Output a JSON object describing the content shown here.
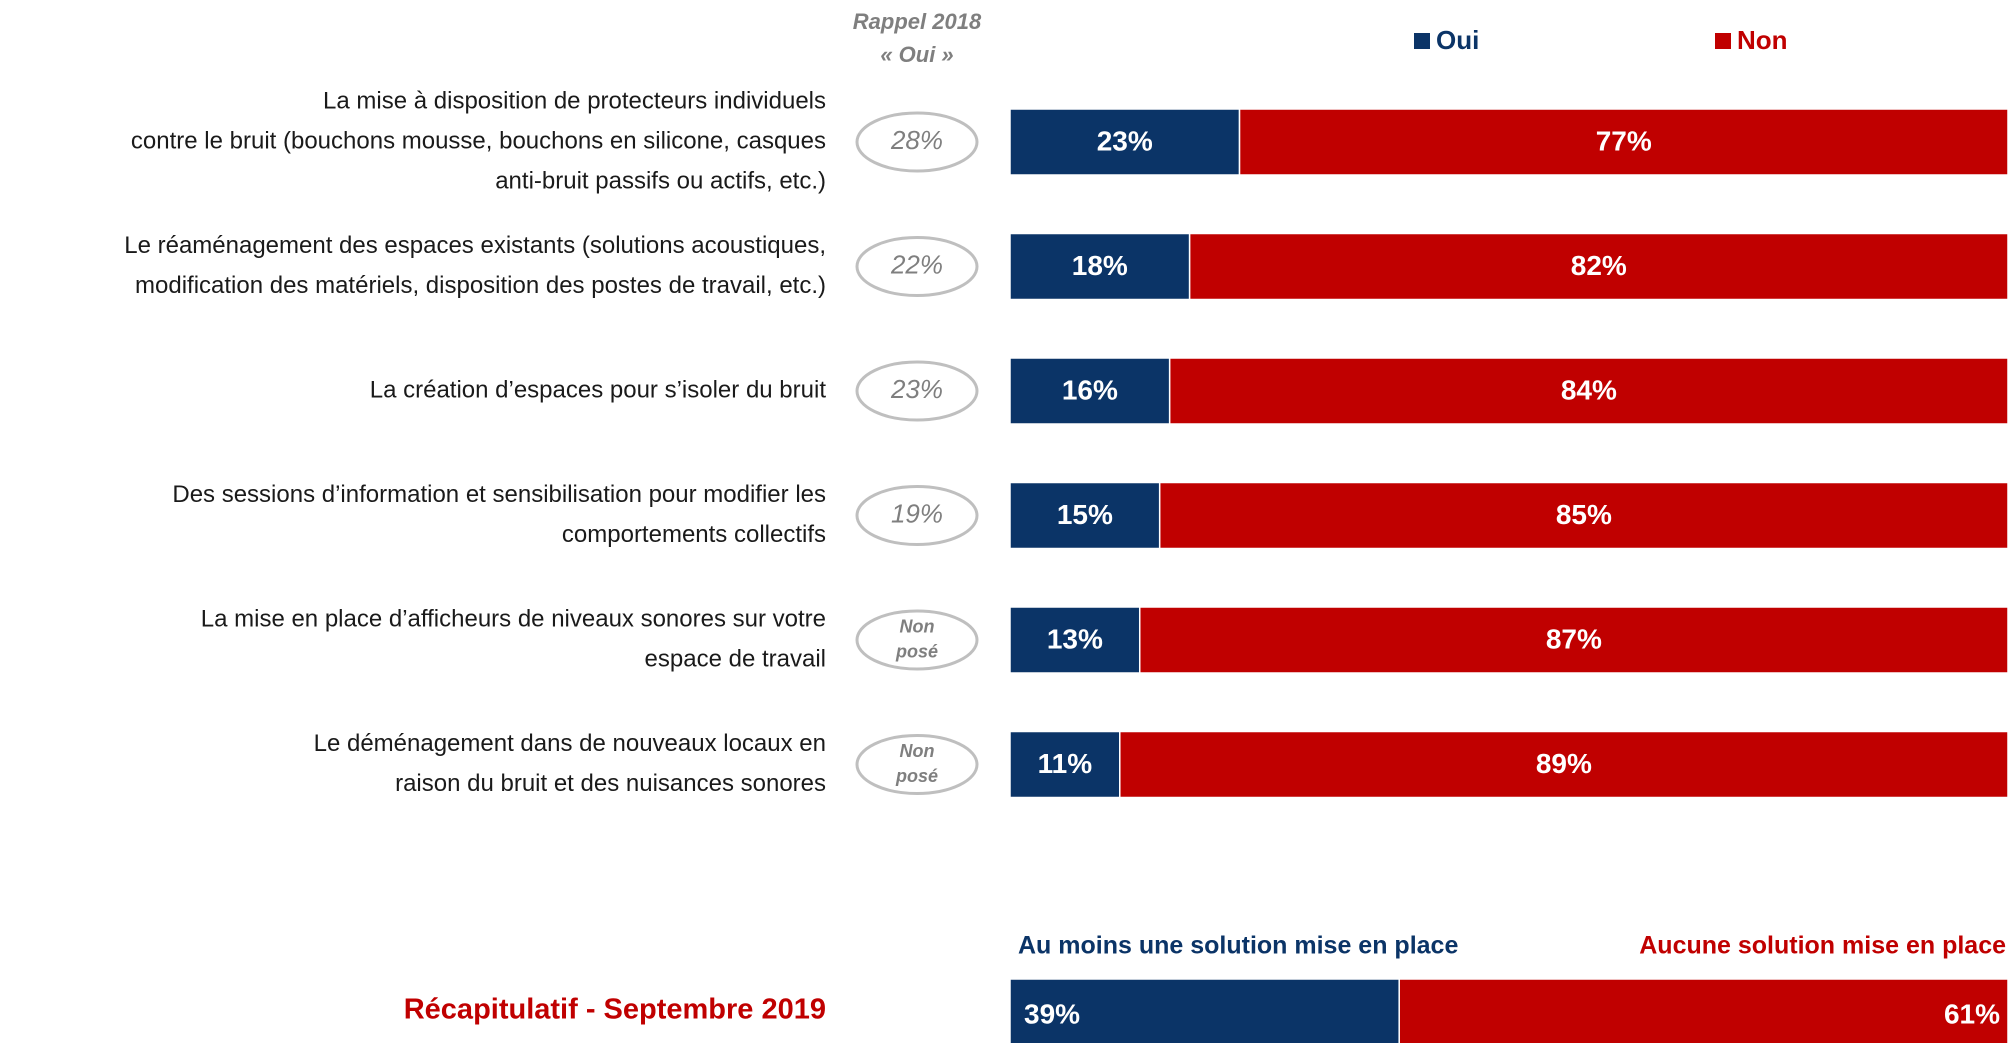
{
  "chart_data": [
    {
      "type": "stacked_bar",
      "legend_position": "top",
      "xlim": [
        0,
        100
      ],
      "categories": [
        [
          "La mise à disposition de protecteurs individuels",
          "contre le bruit (bouchons mousse, bouchons en silicone, casques",
          "anti-bruit passifs ou actifs, etc.)"
        ],
        [
          "Le réaménagement des espaces existants (solutions acoustiques,",
          "modification des matériels, disposition des postes de travail, etc.)"
        ],
        [
          "La création d’espaces pour s’isoler du bruit"
        ],
        [
          "Des sessions d’information et sensibilisation pour modifier les",
          "comportements collectifs"
        ],
        [
          "La mise en place d’afficheurs de niveaux sonores sur votre",
          "espace de travail"
        ],
        [
          "Le déménagement dans de nouveaux locaux en",
          "raison du bruit et des nuisances sonores"
        ]
      ],
      "series": [
        {
          "name": "Oui",
          "color": "#0b3467",
          "values": [
            23,
            18,
            16,
            15,
            13,
            11
          ],
          "value_labels": [
            "23%",
            "18%",
            "16%",
            "15%",
            "13%",
            "11%"
          ]
        },
        {
          "name": "Non",
          "color": "#c00000",
          "values": [
            77,
            82,
            84,
            85,
            87,
            89
          ],
          "value_labels": [
            "77%",
            "82%",
            "84%",
            "85%",
            "87%",
            "89%"
          ]
        }
      ],
      "rappel_2018": {
        "title": [
          "Rappel 2018",
          "« Oui »"
        ],
        "values": [
          28,
          22,
          23,
          19,
          null,
          null
        ],
        "value_labels": [
          [
            "28%"
          ],
          [
            "22%"
          ],
          [
            "23%"
          ],
          [
            "19%"
          ],
          [
            "Non",
            "posé"
          ],
          [
            "Non",
            "posé"
          ]
        ]
      }
    },
    {
      "type": "stacked_bar",
      "label_align": "ends",
      "xlim": [
        0,
        100
      ],
      "title": "Récapitulatif - Septembre 2019",
      "series": [
        {
          "name": "Au moins une solution mise en place",
          "color": "#0b3467",
          "values": [
            39
          ],
          "value_labels": [
            "39%"
          ]
        },
        {
          "name": "Aucune solution mise en place",
          "color": "#c00000",
          "values": [
            61
          ],
          "value_labels": [
            "61%"
          ]
        }
      ]
    }
  ]
}
